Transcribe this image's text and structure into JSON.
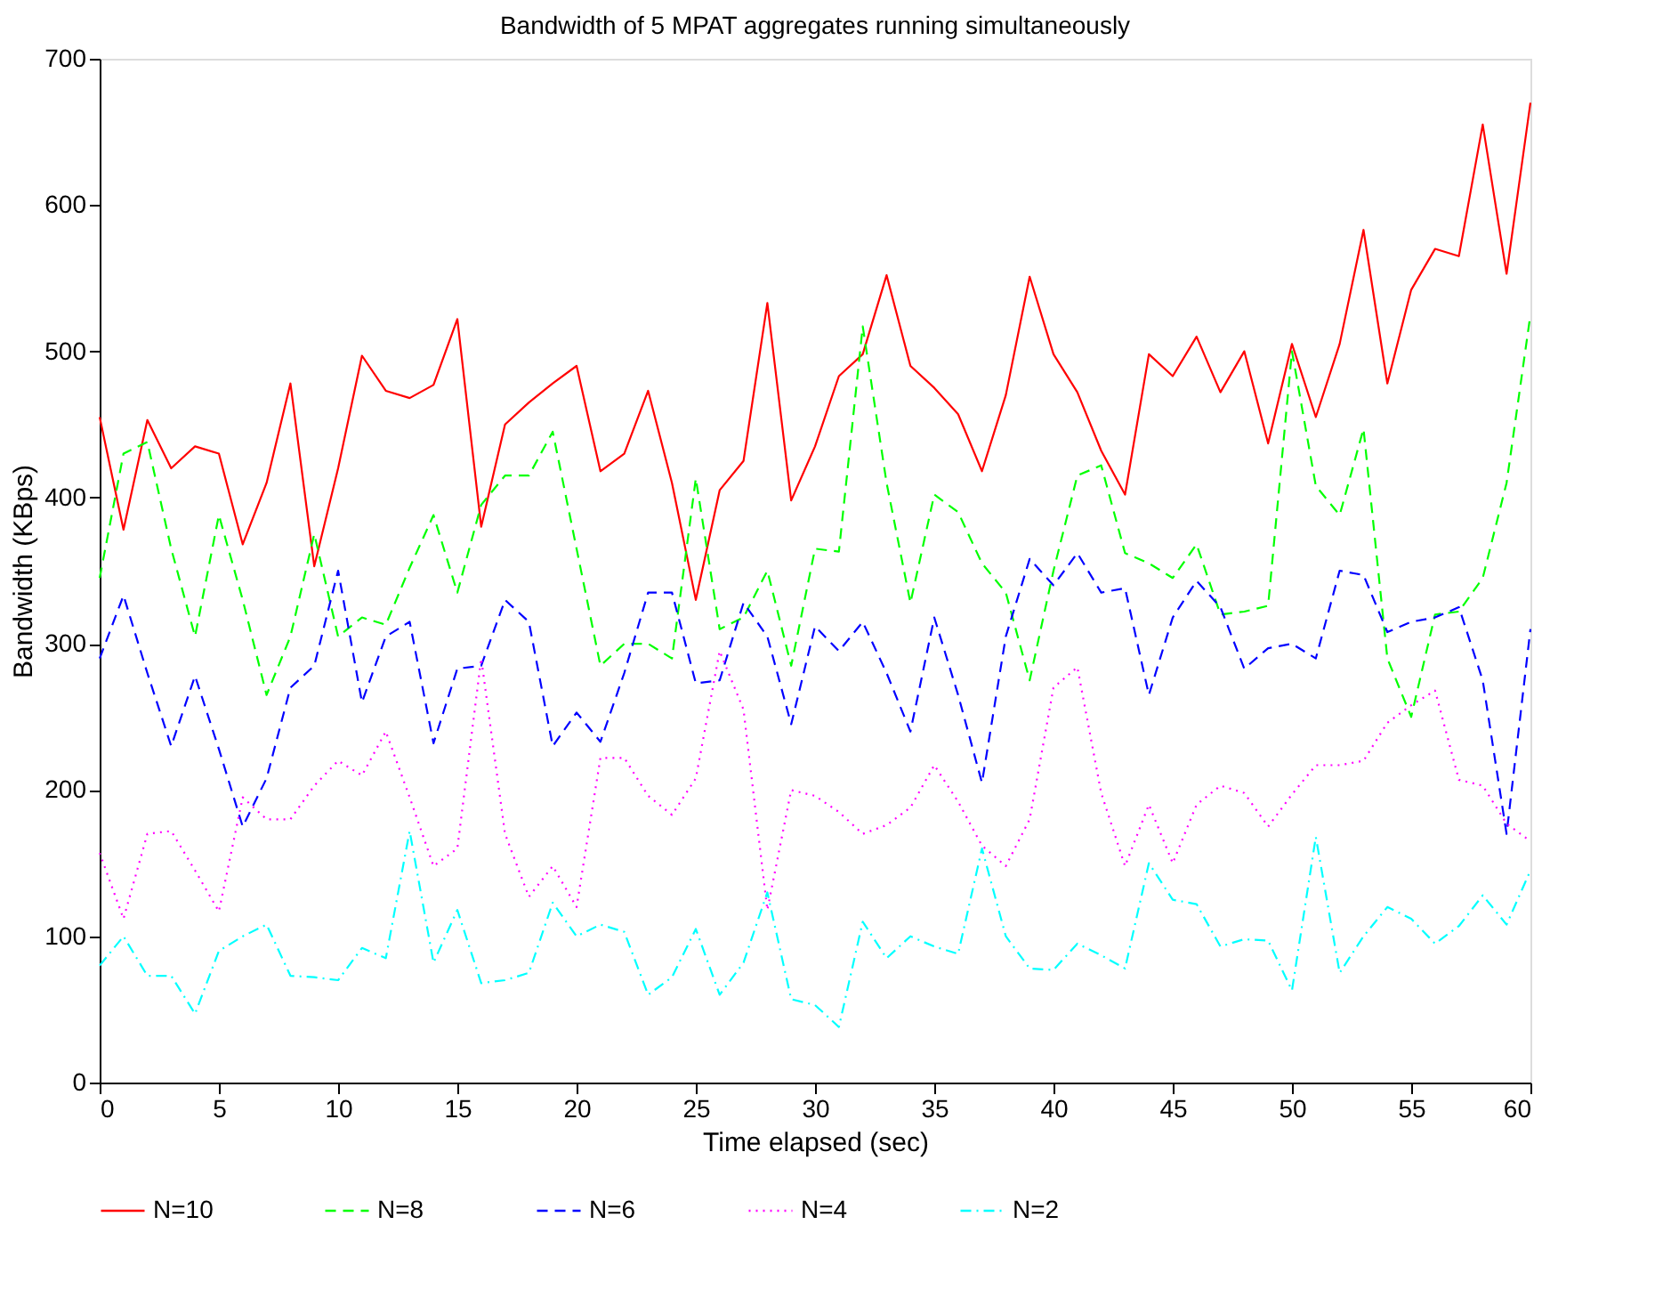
{
  "chart_data": {
    "type": "line",
    "title": "Bandwidth of 5 MPAT aggregates running simultaneously",
    "xlabel": "Time elapsed (sec)",
    "ylabel": "Bandwidth (KBps)",
    "x": [
      0,
      1,
      2,
      3,
      4,
      5,
      6,
      7,
      8,
      9,
      10,
      11,
      12,
      13,
      14,
      15,
      16,
      17,
      18,
      19,
      20,
      21,
      22,
      23,
      24,
      25,
      26,
      27,
      28,
      29,
      30,
      31,
      32,
      33,
      34,
      35,
      36,
      37,
      38,
      39,
      40,
      41,
      42,
      43,
      44,
      45,
      46,
      47,
      48,
      49,
      50,
      51,
      52,
      53,
      54,
      55,
      56,
      57,
      58,
      59,
      60
    ],
    "xlim": [
      0,
      60
    ],
    "xticks": [
      0,
      5,
      10,
      15,
      20,
      25,
      30,
      35,
      40,
      45,
      50,
      55,
      60
    ],
    "ylim": [
      0,
      700
    ],
    "yticks": [
      0,
      100,
      200,
      300,
      400,
      500,
      600,
      700
    ],
    "grid": false,
    "legend": "bottom",
    "marker": "none",
    "series": [
      {
        "name": "N=10",
        "color": "#ff0000",
        "line_style": "solid",
        "values": [
          455,
          378,
          453,
          420,
          435,
          430,
          368,
          410,
          478,
          353,
          420,
          497,
          473,
          468,
          477,
          522,
          380,
          450,
          465,
          478,
          490,
          418,
          430,
          473,
          410,
          330,
          405,
          425,
          533,
          398,
          435,
          483,
          498,
          552,
          490,
          475,
          457,
          418,
          470,
          551,
          498,
          472,
          432,
          402,
          498,
          483,
          510,
          472,
          500,
          437,
          505,
          455,
          505,
          583,
          478,
          542,
          570,
          565,
          655,
          553,
          670
        ]
      },
      {
        "name": "N=8",
        "color": "#00ff00",
        "line_style": "dashed",
        "values": [
          345,
          430,
          438,
          365,
          305,
          388,
          330,
          265,
          305,
          375,
          305,
          318,
          313,
          352,
          388,
          335,
          395,
          415,
          415,
          445,
          365,
          285,
          300,
          300,
          290,
          413,
          310,
          318,
          350,
          285,
          365,
          363,
          517,
          410,
          328,
          402,
          390,
          355,
          335,
          275,
          350,
          415,
          422,
          362,
          355,
          345,
          368,
          320,
          322,
          326,
          500,
          408,
          388,
          447,
          290,
          250,
          320,
          322,
          345,
          410,
          525
        ]
      },
      {
        "name": "N=6",
        "color": "#0000ff",
        "line_style": "dashed",
        "values": [
          290,
          333,
          280,
          230,
          278,
          228,
          175,
          208,
          270,
          285,
          350,
          260,
          305,
          315,
          232,
          283,
          285,
          330,
          315,
          230,
          253,
          233,
          280,
          335,
          335,
          273,
          275,
          328,
          305,
          245,
          312,
          295,
          315,
          280,
          240,
          318,
          265,
          205,
          305,
          358,
          340,
          362,
          335,
          338,
          265,
          318,
          343,
          325,
          283,
          297,
          300,
          290,
          350,
          347,
          308,
          315,
          318,
          325,
          275,
          170,
          310
        ]
      },
      {
        "name": "N=4",
        "color": "#ff00ff",
        "line_style": "dotted",
        "values": [
          157,
          112,
          170,
          172,
          145,
          117,
          195,
          180,
          180,
          203,
          220,
          210,
          240,
          195,
          148,
          160,
          290,
          170,
          127,
          148,
          120,
          222,
          222,
          196,
          183,
          208,
          295,
          255,
          118,
          200,
          196,
          185,
          170,
          176,
          188,
          217,
          192,
          162,
          148,
          180,
          270,
          284,
          198,
          148,
          190,
          150,
          190,
          203,
          198,
          175,
          197,
          217,
          217,
          220,
          246,
          258,
          268,
          207,
          203,
          177,
          165
        ]
      },
      {
        "name": "N=2",
        "color": "#00ffff",
        "line_style": "dashdot",
        "values": [
          80,
          100,
          73,
          73,
          47,
          90,
          100,
          108,
          73,
          72,
          70,
          92,
          85,
          172,
          82,
          118,
          68,
          70,
          75,
          123,
          100,
          108,
          103,
          60,
          72,
          105,
          60,
          82,
          130,
          57,
          53,
          38,
          110,
          85,
          100,
          93,
          88,
          160,
          100,
          78,
          77,
          95,
          87,
          78,
          150,
          125,
          122,
          93,
          98,
          97,
          63,
          168,
          75,
          100,
          120,
          112,
          95,
          107,
          128,
          108,
          145
        ]
      }
    ]
  }
}
